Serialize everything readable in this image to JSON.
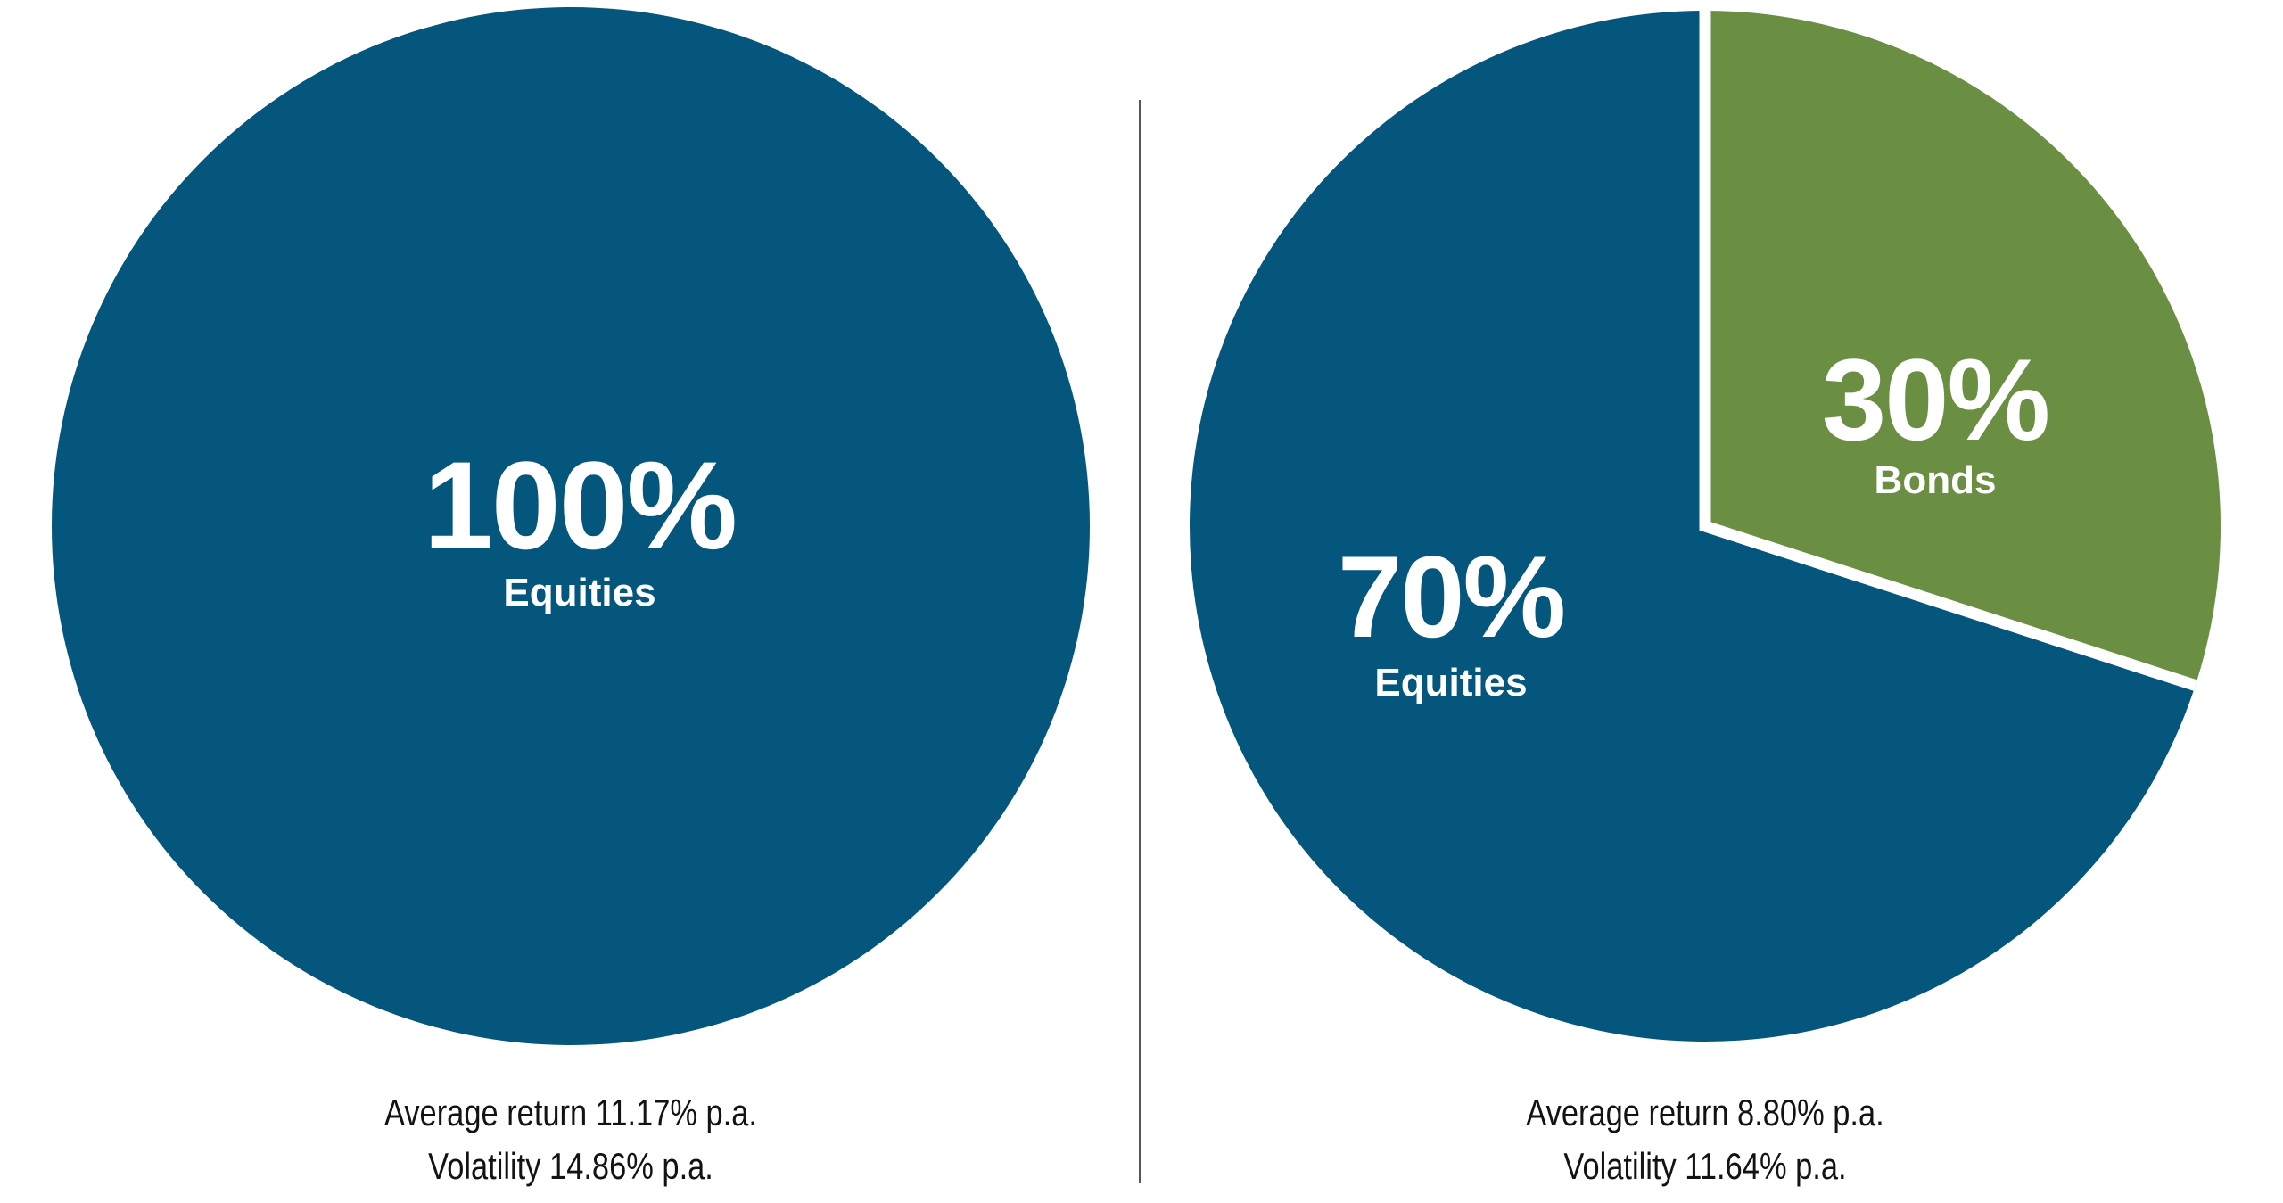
{
  "colors": {
    "equities_blue": "#05567C",
    "bonds_green": "#6A8E42",
    "slice_gap_white": "#FFFFFF",
    "divider_gray": "#54575E",
    "label_white": "#FFFFFF",
    "caption_black": "#131313"
  },
  "divider": {
    "visible": true
  },
  "chart_data": [
    {
      "type": "pie",
      "start_angle_deg": 0,
      "slices": [
        {
          "label": "Equities",
          "value": 100,
          "percent_label": "100%",
          "color": "#05567C"
        }
      ],
      "center_label": {
        "percent": "100%",
        "name": "Equities"
      },
      "caption_lines": [
        "Average return 11.17% p.a.",
        "Volatility 14.86% p.a."
      ],
      "average_return_pct_pa": 11.17,
      "volatility_pct_pa": 14.86,
      "legend": "none",
      "grid": false
    },
    {
      "type": "pie",
      "start_angle_deg": 0,
      "slices": [
        {
          "label": "Bonds",
          "value": 30,
          "percent_label": "30%",
          "color": "#6A8E42"
        },
        {
          "label": "Equities",
          "value": 70,
          "percent_label": "70%",
          "color": "#05567C"
        }
      ],
      "caption_lines": [
        "Average return 8.80% p.a.",
        "Volatility 11.64% p.a."
      ],
      "average_return_pct_pa": 8.8,
      "volatility_pct_pa": 11.64,
      "legend": "none",
      "grid": false
    }
  ]
}
